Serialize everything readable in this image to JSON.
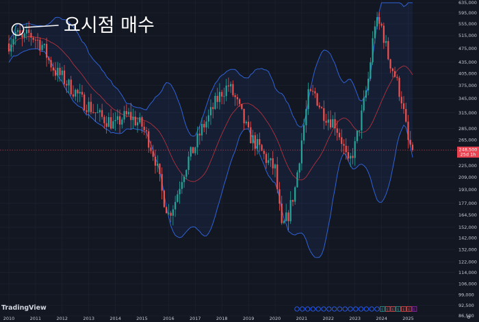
{
  "annotation": {
    "text": "요시점 매수"
  },
  "brand": {
    "name": "TradingView"
  },
  "price_tag": {
    "price": "248,500",
    "countdown": "25d 1h"
  },
  "colors": {
    "background": "#131722",
    "up": "#26a69a",
    "down": "#ef5350",
    "band": "#2f63d6",
    "ma": "#b0323c",
    "price_tag": "#e8414f"
  },
  "event_markers": {
    "dividend_count": 16,
    "earnings_count": 7,
    "dividend_label": "D",
    "earnings_label": "E"
  },
  "chart_data": {
    "type": "candlestick",
    "indicators": [
      "Bollinger Bands"
    ],
    "y_scale": "log",
    "y_ticks": [
      635000,
      595000,
      555000,
      515000,
      475000,
      435000,
      405000,
      375000,
      345000,
      315000,
      285000,
      265000,
      248500,
      225000,
      209000,
      193000,
      177000,
      164500,
      152000,
      142000,
      132000,
      122000,
      114000,
      106000,
      99000,
      92500,
      86500
    ],
    "y_tick_labels": [
      "635,000",
      "595,000",
      "555,000",
      "515,000",
      "475,000",
      "435,000",
      "405,000",
      "375,000",
      "345,000",
      "315,000",
      "285,000",
      "265,000",
      "248,500",
      "225,000",
      "209,000",
      "193,000",
      "177,000",
      "164,500",
      "152,000",
      "142,000",
      "132,000",
      "122,000",
      "114,000",
      "106,000",
      "99,000",
      "92,500",
      "86,500"
    ],
    "x_labels": [
      "2010",
      "2011",
      "2012",
      "2013",
      "2014",
      "2015",
      "2016",
      "2017",
      "2018",
      "2019",
      "2020",
      "2021",
      "2022",
      "2023",
      "2024",
      "2025"
    ],
    "price_close_series": [
      [
        "2010-01",
        490000
      ],
      [
        "2010-04",
        525000
      ],
      [
        "2010-07",
        500000
      ],
      [
        "2010-10",
        520000
      ],
      [
        "2011-01",
        505000
      ],
      [
        "2011-04",
        485000
      ],
      [
        "2011-07",
        440000
      ],
      [
        "2011-10",
        410000
      ],
      [
        "2012-01",
        395000
      ],
      [
        "2012-04",
        375000
      ],
      [
        "2012-07",
        360000
      ],
      [
        "2012-10",
        340000
      ],
      [
        "2013-01",
        330000
      ],
      [
        "2013-04",
        315000
      ],
      [
        "2013-07",
        305000
      ],
      [
        "2013-10",
        300000
      ],
      [
        "2014-01",
        290000
      ],
      [
        "2014-04",
        305000
      ],
      [
        "2014-07",
        310000
      ],
      [
        "2014-10",
        300000
      ],
      [
        "2015-01",
        290000
      ],
      [
        "2015-04",
        265000
      ],
      [
        "2015-07",
        235000
      ],
      [
        "2015-10",
        190000
      ],
      [
        "2016-01",
        165000
      ],
      [
        "2016-04",
        180000
      ],
      [
        "2016-07",
        210000
      ],
      [
        "2016-10",
        235000
      ],
      [
        "2017-01",
        255000
      ],
      [
        "2017-04",
        285000
      ],
      [
        "2017-07",
        305000
      ],
      [
        "2017-10",
        335000
      ],
      [
        "2018-01",
        360000
      ],
      [
        "2018-04",
        375000
      ],
      [
        "2018-07",
        345000
      ],
      [
        "2018-10",
        310000
      ],
      [
        "2019-01",
        275000
      ],
      [
        "2019-04",
        260000
      ],
      [
        "2019-07",
        245000
      ],
      [
        "2019-10",
        230000
      ],
      [
        "2020-01",
        220000
      ],
      [
        "2020-04",
        150000
      ],
      [
        "2020-07",
        165000
      ],
      [
        "2020-10",
        195000
      ],
      [
        "2021-01",
        265000
      ],
      [
        "2021-04",
        350000
      ],
      [
        "2021-07",
        355000
      ],
      [
        "2021-10",
        320000
      ],
      [
        "2022-01",
        305000
      ],
      [
        "2022-04",
        295000
      ],
      [
        "2022-07",
        265000
      ],
      [
        "2022-10",
        225000
      ],
      [
        "2023-01",
        255000
      ],
      [
        "2023-04",
        310000
      ],
      [
        "2023-07",
        390000
      ],
      [
        "2023-10",
        560000
      ],
      [
        "2024-01",
        545000
      ],
      [
        "2024-04",
        450000
      ],
      [
        "2024-07",
        400000
      ],
      [
        "2024-10",
        345000
      ],
      [
        "2025-01",
        262000
      ],
      [
        "2025-03",
        248500
      ]
    ]
  }
}
